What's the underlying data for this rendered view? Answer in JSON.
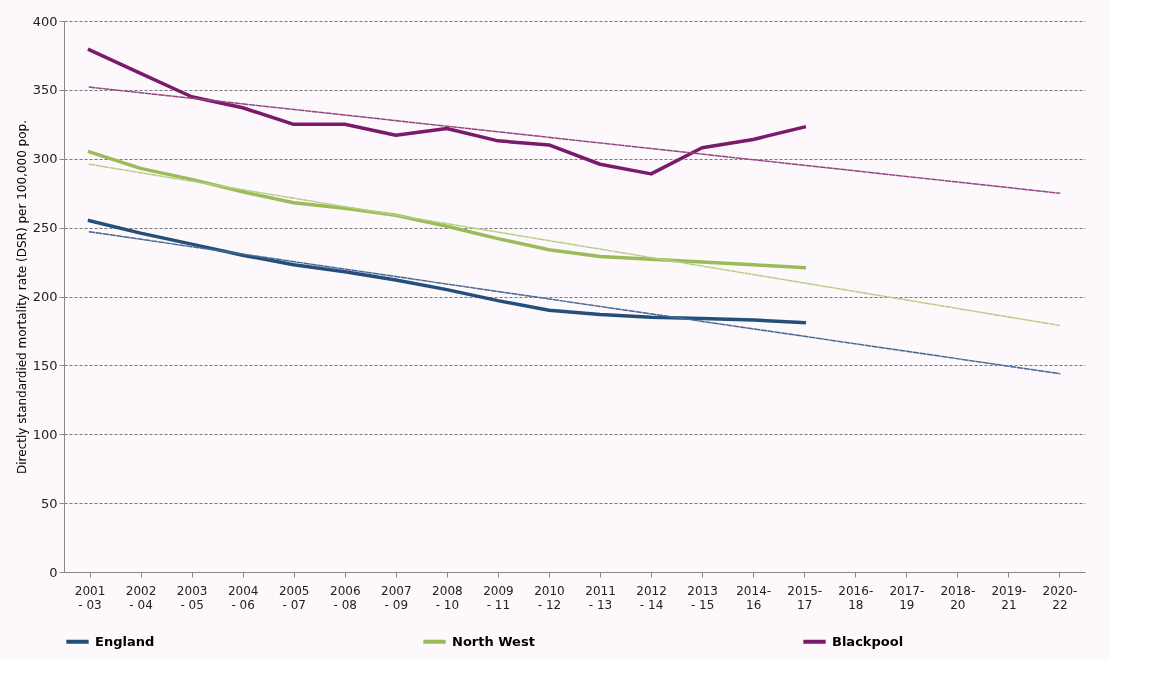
{
  "chart_data": {
    "type": "line",
    "ylabel": "Directly standardied mortality rate (DSR) per 100,000 pop.",
    "categories": [
      "2001 - 03",
      "2002 - 04",
      "2003 - 05",
      "2004 - 06",
      "2005 - 07",
      "2006 - 08",
      "2007 - 09",
      "2008 - 10",
      "2009 - 11",
      "2010 - 12",
      "2011 - 13",
      "2012 - 14",
      "2013 - 15",
      "2014- 16",
      "2015- 17",
      "2016- 18",
      "2017- 19",
      "2018- 20",
      "2019- 21",
      "2020- 22"
    ],
    "series": [
      {
        "name": "England",
        "color": "#254e7b",
        "values": [
          255,
          246,
          238,
          230,
          223,
          218,
          212,
          205,
          197,
          190,
          187,
          185,
          184,
          183,
          181,
          null,
          null,
          null,
          null,
          null
        ]
      },
      {
        "name": "North West",
        "color": "#9bbb59",
        "values": [
          305,
          293,
          285,
          276,
          268,
          264,
          259,
          251,
          242,
          234,
          229,
          227,
          225,
          223,
          221,
          null,
          null,
          null,
          null,
          null
        ]
      },
      {
        "name": "Blackpool",
        "color": "#7b1a6a",
        "values": [
          379,
          362,
          345,
          337,
          325,
          325,
          317,
          322,
          313,
          310,
          296,
          289,
          308,
          314,
          323,
          null,
          null,
          null,
          null,
          null
        ]
      },
      {
        "type": "line",
        "color": "#4a6a95",
        "line_style": "dashed",
        "x": [
          "2001 - 03",
          "2020- 22"
        ],
        "values": [
          247,
          144
        ]
      },
      {
        "type": "line",
        "color": "#b5cf85",
        "line_style": "dashed",
        "x": [
          "2001 - 03",
          "2020- 22"
        ],
        "values": [
          296,
          179
        ]
      },
      {
        "type": "line",
        "color": "#94487f",
        "line_style": "dashed",
        "x": [
          "2001 - 03",
          "2020- 22"
        ],
        "values": [
          352,
          275
        ]
      }
    ],
    "ylim": [
      0,
      400
    ],
    "yticks": [
      0,
      50,
      100,
      150,
      200,
      250,
      300,
      350,
      400
    ],
    "grid": "y",
    "legend": "bottom"
  }
}
